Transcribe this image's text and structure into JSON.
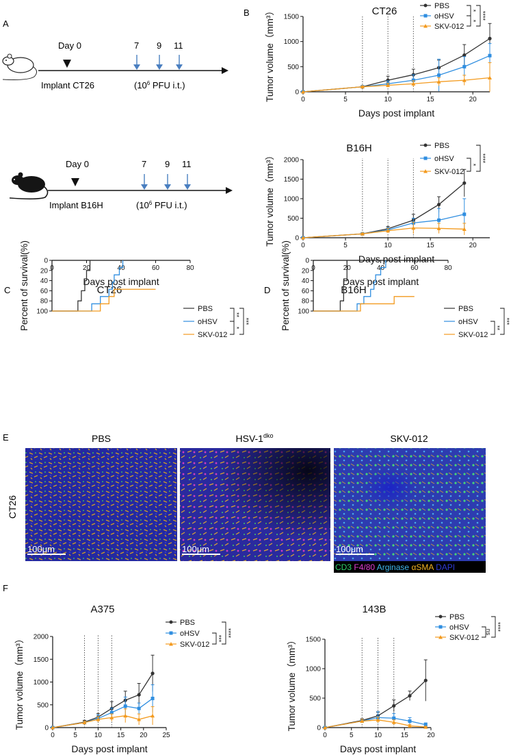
{
  "panel_letters": {
    "A": "A",
    "B": "B",
    "C": "C",
    "D": "D",
    "E": "E",
    "F": "F"
  },
  "schematic": {
    "colors": {
      "arrow": "#4a7fc0",
      "line": "#111111"
    },
    "rows": [
      {
        "mouse": "white-mouse",
        "day0_label": "Day 0",
        "days": [
          "7",
          "9",
          "11"
        ],
        "implant_label": "Implant CT26",
        "pfu_prefix": "(10",
        "pfu_sup": "6",
        "pfu_suffix": " PFU i.t.)"
      },
      {
        "mouse": "black-mouse",
        "day0_label": "Day 0",
        "days": [
          "7",
          "9",
          "11"
        ],
        "implant_label": "Implant B16H",
        "pfu_prefix": "(10",
        "pfu_sup": "6",
        "pfu_suffix": " PFU i.t.)"
      }
    ]
  },
  "microscopy": {
    "row_label": "CT26",
    "panels": [
      {
        "title": "PBS",
        "title_sup": "",
        "scale": "100μm"
      },
      {
        "title": "HSV-1",
        "title_sup": "dko",
        "scale": "100μm"
      },
      {
        "title": "SKV-012",
        "title_sup": "",
        "scale": "100μm"
      }
    ],
    "channel_legend": [
      {
        "text": "CD3",
        "color": "#2fd26a"
      },
      {
        "text": "F4/80",
        "color": "#e23fd4"
      },
      {
        "text": "Arginase",
        "color": "#40b6ea"
      },
      {
        "text": "αSMA",
        "color": "#f3b323"
      },
      {
        "text": "DAPI",
        "color": "#2f3bd6"
      }
    ]
  },
  "series_colors": {
    "PBS": "#333333",
    "oHSV": "#2f8ee0",
    "SKV-012": "#f39a1e"
  },
  "chart_data": [
    {
      "id": "B-top",
      "type": "line",
      "title": "CT26",
      "xlabel": "Days post implant",
      "ylabel": "Tumor volume（mm³）",
      "xlim": [
        0,
        22
      ],
      "ylim": [
        0,
        1500
      ],
      "xticks": [
        0,
        5,
        10,
        15,
        20
      ],
      "yticks": [
        0,
        500,
        1000,
        1500
      ],
      "dosing_days": [
        7,
        10,
        13
      ],
      "series": [
        {
          "name": "PBS",
          "x": [
            0,
            7,
            10,
            13,
            16,
            19,
            22
          ],
          "y": [
            0,
            100,
            230,
            340,
            480,
            730,
            1060
          ],
          "err": [
            0,
            20,
            80,
            110,
            150,
            210,
            300
          ]
        },
        {
          "name": "oHSV",
          "x": [
            0,
            7,
            10,
            13,
            16,
            19,
            22
          ],
          "y": [
            0,
            100,
            160,
            230,
            330,
            500,
            720
          ],
          "err": [
            0,
            20,
            60,
            110,
            320,
            200,
            240
          ]
        },
        {
          "name": "SKV-012",
          "x": [
            0,
            7,
            10,
            13,
            16,
            19,
            22
          ],
          "y": [
            0,
            100,
            130,
            160,
            200,
            230,
            280
          ],
          "err": [
            0,
            15,
            40,
            60,
            80,
            100,
            300
          ]
        }
      ],
      "stats": [
        "*",
        "*",
        "****"
      ]
    },
    {
      "id": "B-bottom",
      "type": "line",
      "title": "B16H",
      "xlabel": "Days post implant",
      "ylabel": "Tumor volume（mm³）",
      "xlim": [
        0,
        22
      ],
      "ylim": [
        0,
        2000
      ],
      "xticks": [
        0,
        5,
        10,
        15,
        20
      ],
      "yticks": [
        0,
        500,
        1000,
        1500,
        2000
      ],
      "dosing_days": [
        7,
        10,
        13
      ],
      "series": [
        {
          "name": "PBS",
          "x": [
            0,
            7,
            10,
            13,
            16,
            19
          ],
          "y": [
            0,
            100,
            230,
            450,
            850,
            1400
          ],
          "err": [
            0,
            20,
            60,
            150,
            200,
            350
          ]
        },
        {
          "name": "oHSV",
          "x": [
            0,
            7,
            10,
            13,
            16,
            19
          ],
          "y": [
            0,
            100,
            200,
            380,
            450,
            600
          ],
          "err": [
            0,
            20,
            60,
            120,
            300,
            400
          ]
        },
        {
          "name": "SKV-012",
          "x": [
            0,
            7,
            10,
            13,
            16,
            19
          ],
          "y": [
            0,
            100,
            180,
            250,
            240,
            220
          ],
          "err": [
            0,
            20,
            60,
            150,
            130,
            150
          ]
        }
      ],
      "stats": [
        "*",
        "****"
      ]
    },
    {
      "id": "C",
      "type": "line",
      "title": "CT26",
      "xlabel": "Days post implant",
      "ylabel": "Percent of survival(%)",
      "xlim": [
        0,
        80
      ],
      "ylim": [
        0,
        100
      ],
      "xticks": [
        0,
        20,
        40,
        60,
        80
      ],
      "yticks": [
        0,
        20,
        40,
        60,
        80,
        100
      ],
      "series": [
        {
          "name": "PBS",
          "steps": [
            [
              0,
              100
            ],
            [
              15,
              100
            ],
            [
              15,
              80
            ],
            [
              17,
              80
            ],
            [
              17,
              60
            ],
            [
              19,
              60
            ],
            [
              19,
              40
            ],
            [
              20,
              40
            ],
            [
              20,
              20
            ],
            [
              22,
              20
            ],
            [
              22,
              0
            ],
            [
              23,
              0
            ]
          ]
        },
        {
          "name": "oHSV",
          "steps": [
            [
              0,
              100
            ],
            [
              23,
              100
            ],
            [
              23,
              85.7
            ],
            [
              28,
              85.7
            ],
            [
              28,
              71.4
            ],
            [
              33,
              71.4
            ],
            [
              33,
              57.1
            ],
            [
              35,
              57.1
            ],
            [
              35,
              42.9
            ],
            [
              36,
              42.9
            ],
            [
              36,
              28.6
            ],
            [
              39,
              28.6
            ],
            [
              39,
              14.3
            ],
            [
              41,
              14.3
            ],
            [
              41,
              0
            ]
          ]
        },
        {
          "name": "SKV-012",
          "steps": [
            [
              0,
              100
            ],
            [
              28,
              100
            ],
            [
              28,
              85.7
            ],
            [
              33,
              85.7
            ],
            [
              33,
              71.4
            ],
            [
              36,
              71.4
            ],
            [
              36,
              57.1
            ],
            [
              60,
              57.1
            ]
          ]
        }
      ],
      "stats": [
        "**",
        "*",
        "***"
      ]
    },
    {
      "id": "D",
      "type": "line",
      "title": "B16H",
      "xlabel": "Days post implant",
      "ylabel": "Percent of survival(%)",
      "xlim": [
        0,
        80
      ],
      "ylim": [
        0,
        100
      ],
      "xticks": [
        0,
        20,
        40,
        60,
        80
      ],
      "yticks": [
        0,
        20,
        40,
        60,
        80,
        100
      ],
      "series": [
        {
          "name": "PBS",
          "steps": [
            [
              0,
              100
            ],
            [
              16,
              100
            ],
            [
              16,
              80
            ],
            [
              18,
              80
            ],
            [
              18,
              40
            ],
            [
              20,
              40
            ],
            [
              20,
              0
            ]
          ]
        },
        {
          "name": "oHSV",
          "steps": [
            [
              0,
              100
            ],
            [
              26,
              100
            ],
            [
              26,
              85.7
            ],
            [
              30,
              85.7
            ],
            [
              30,
              71.4
            ],
            [
              34,
              71.4
            ],
            [
              34,
              57.1
            ],
            [
              36,
              57.1
            ],
            [
              36,
              42.9
            ],
            [
              37,
              42.9
            ],
            [
              37,
              28.6
            ],
            [
              40,
              28.6
            ],
            [
              40,
              14.3
            ],
            [
              43,
              14.3
            ],
            [
              43,
              0
            ]
          ]
        },
        {
          "name": "SKV-012",
          "steps": [
            [
              0,
              100
            ],
            [
              28,
              100
            ],
            [
              28,
              85.7
            ],
            [
              48,
              85.7
            ],
            [
              48,
              71.4
            ],
            [
              60,
              71.4
            ]
          ]
        }
      ],
      "stats": [
        "**",
        "***"
      ]
    },
    {
      "id": "F-left",
      "type": "line",
      "title": "A375",
      "xlabel": "Days post implant",
      "ylabel": "Tumor volume（mm³）",
      "xlim": [
        0,
        25
      ],
      "ylim": [
        0,
        2000
      ],
      "xticks": [
        0,
        5,
        10,
        15,
        20,
        25
      ],
      "yticks": [
        0,
        500,
        1000,
        1500,
        2000
      ],
      "dosing_days": [
        7,
        10,
        13
      ],
      "series": [
        {
          "name": "PBS",
          "x": [
            0,
            7,
            10,
            13,
            16,
            19,
            22
          ],
          "y": [
            0,
            120,
            230,
            420,
            600,
            720,
            1190
          ],
          "err": [
            0,
            40,
            80,
            150,
            200,
            250,
            400
          ]
        },
        {
          "name": "oHSV",
          "x": [
            0,
            7,
            10,
            13,
            16,
            19,
            22
          ],
          "y": [
            0,
            110,
            200,
            330,
            470,
            420,
            640
          ],
          "err": [
            0,
            30,
            80,
            100,
            200,
            120,
            300
          ]
        },
        {
          "name": "SKV-012",
          "x": [
            0,
            7,
            10,
            13,
            16,
            19,
            22
          ],
          "y": [
            0,
            110,
            180,
            220,
            260,
            180,
            260
          ],
          "err": [
            0,
            30,
            60,
            80,
            150,
            120,
            200
          ]
        }
      ],
      "stats": [
        "***",
        "****"
      ]
    },
    {
      "id": "F-right",
      "type": "line",
      "title": "143B",
      "xlabel": "Days post implant",
      "ylabel": "Tumor volume（mm³）",
      "xlim": [
        0,
        20
      ],
      "ylim": [
        0,
        1500
      ],
      "xticks": [
        0,
        5,
        10,
        15,
        20
      ],
      "yticks": [
        0,
        500,
        1000,
        1500
      ],
      "dosing_days": [
        7,
        10,
        13
      ],
      "series": [
        {
          "name": "PBS",
          "x": [
            0,
            7,
            10,
            13,
            16,
            19
          ],
          "y": [
            0,
            120,
            200,
            370,
            540,
            800
          ],
          "err": [
            0,
            30,
            60,
            100,
            80,
            350
          ]
        },
        {
          "name": "oHSV",
          "x": [
            0,
            7,
            10,
            13,
            16,
            19
          ],
          "y": [
            0,
            110,
            170,
            160,
            110,
            50
          ],
          "err": [
            0,
            30,
            100,
            80,
            60,
            30
          ]
        },
        {
          "name": "SKV-012",
          "x": [
            0,
            7,
            10,
            13,
            16,
            19
          ],
          "y": [
            0,
            110,
            130,
            90,
            30,
            10
          ],
          "err": [
            0,
            30,
            50,
            40,
            20,
            10
          ]
        }
      ],
      "stats": [
        "ns",
        "****"
      ]
    }
  ]
}
